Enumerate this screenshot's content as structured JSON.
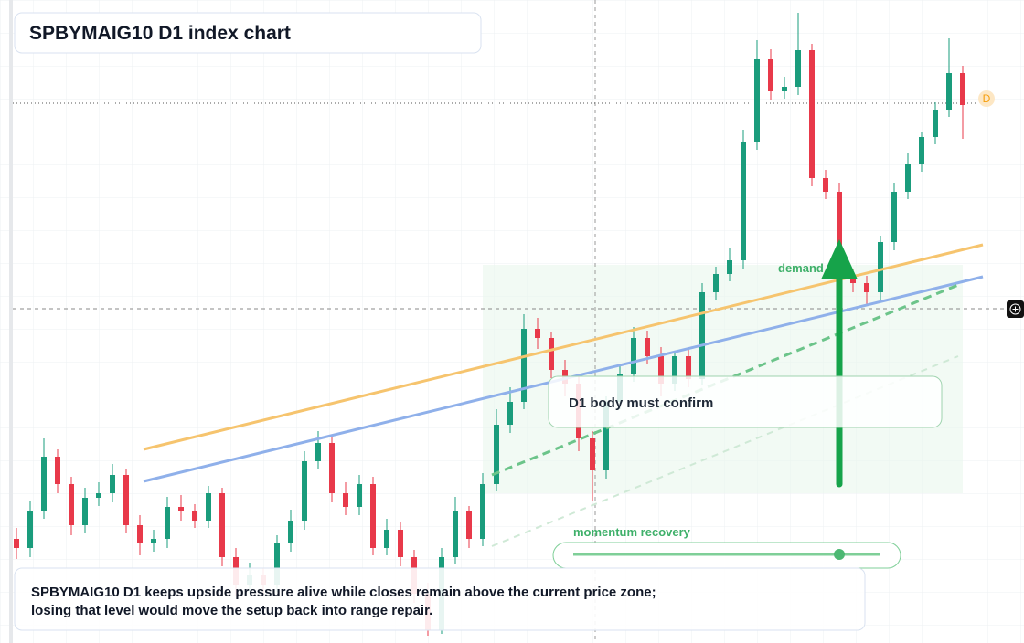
{
  "chart_data": {
    "type": "candlestick",
    "title": "SPBYMAIG10 D1 index chart",
    "ylim": [
      0,
      704
    ],
    "up_color": "#1a9c7c",
    "down_color": "#e8394a",
    "open": [
      114,
      104,
      144,
      204,
      174,
      129,
      159,
      164,
      184,
      129,
      109,
      114,
      149,
      144,
      134,
      164,
      94,
      64,
      74,
      64,
      109,
      134,
      199,
      219,
      164,
      149,
      174,
      104,
      124,
      94,
      54,
      14,
      94,
      144,
      114,
      174,
      239,
      264,
      344,
      334,
      299,
      284,
      224,
      189,
      264,
      294,
      334,
      314,
      284,
      314,
      289,
      384,
      404,
      419,
      549,
      639,
      604,
      609,
      649,
      509,
      494,
      399,
      394,
      384,
      439,
      494,
      524,
      554,
      584,
      624
    ],
    "high": [
      126,
      156,
      224,
      212,
      182,
      170,
      176,
      196,
      190,
      140,
      124,
      160,
      162,
      152,
      172,
      170,
      104,
      88,
      82,
      118,
      146,
      210,
      232,
      226,
      176,
      184,
      182,
      136,
      132,
      102,
      66,
      104,
      160,
      150,
      186,
      256,
      280,
      360,
      356,
      340,
      310,
      292,
      232,
      270,
      304,
      346,
      342,
      324,
      320,
      322,
      394,
      412,
      432,
      562,
      660,
      650,
      620,
      690,
      656,
      518,
      504,
      410,
      402,
      446,
      504,
      536,
      560,
      592,
      662,
      632
    ],
    "low": [
      92,
      94,
      136,
      164,
      118,
      120,
      150,
      154,
      120,
      96,
      100,
      104,
      134,
      126,
      126,
      84,
      52,
      54,
      52,
      56,
      100,
      124,
      190,
      154,
      140,
      140,
      96,
      96,
      84,
      44,
      8,
      10,
      86,
      104,
      106,
      166,
      230,
      256,
      322,
      290,
      270,
      210,
      156,
      180,
      256,
      286,
      306,
      270,
      276,
      280,
      282,
      376,
      396,
      410,
      540,
      594,
      596,
      600,
      500,
      486,
      390,
      384,
      370,
      376,
      430,
      486,
      516,
      546,
      576,
      552
    ],
    "close": [
      104,
      144,
      204,
      174,
      129,
      159,
      164,
      184,
      129,
      109,
      114,
      149,
      144,
      134,
      164,
      94,
      64,
      74,
      64,
      109,
      134,
      199,
      219,
      164,
      149,
      174,
      104,
      124,
      94,
      54,
      14,
      94,
      144,
      114,
      174,
      239,
      264,
      344,
      334,
      299,
      284,
      224,
      189,
      264,
      294,
      334,
      314,
      284,
      314,
      289,
      384,
      404,
      419,
      549,
      639,
      604,
      609,
      649,
      509,
      494,
      399,
      394,
      384,
      439,
      494,
      524,
      554,
      584,
      624,
      589
    ],
    "last_label": "D",
    "annotations": {
      "zone": "demand side",
      "confirm": "D1 body must confirm",
      "momentum": "momentum recovery",
      "summary": [
        "SPBYMAIG10 D1 keeps upside pressure alive while closes remain above the current price zone;",
        "losing that level would move the setup back into range repair."
      ]
    }
  }
}
